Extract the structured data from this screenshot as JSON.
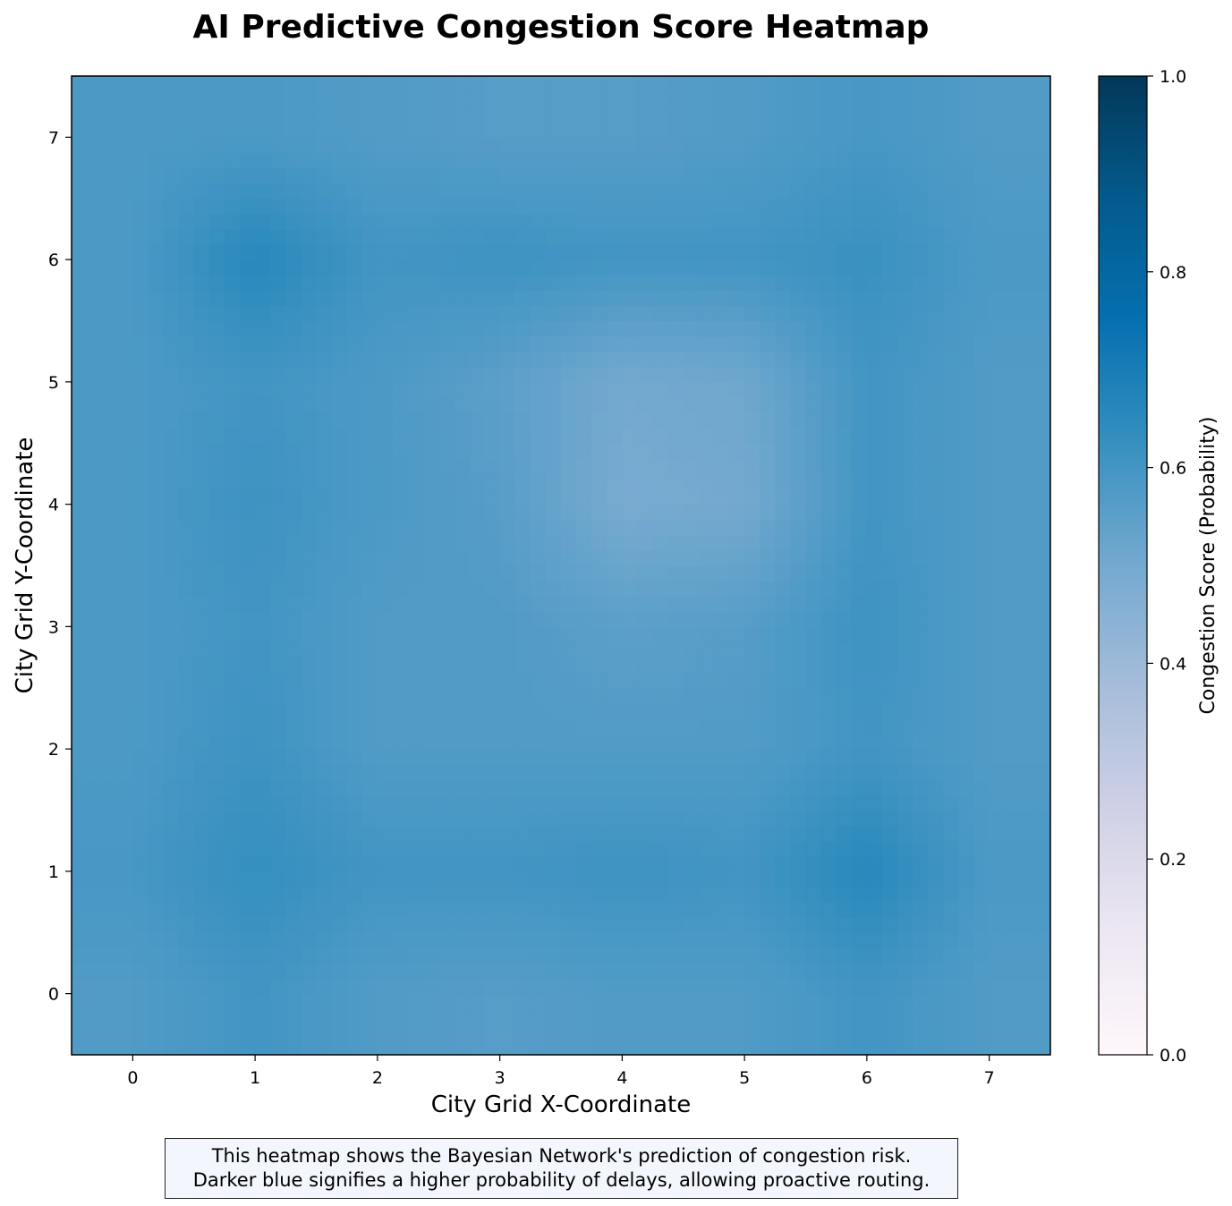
{
  "chart_data": {
    "type": "heatmap",
    "title": "AI Predictive Congestion Score Heatmap",
    "xlabel": "City Grid X-Coordinate",
    "ylabel": "City Grid Y-Coordinate",
    "x": [
      0,
      1,
      2,
      3,
      4,
      5,
      6,
      7
    ],
    "y": [
      0,
      1,
      2,
      3,
      4,
      5,
      6,
      7
    ],
    "xlim": [
      -0.5,
      7.5
    ],
    "ylim": [
      -0.5,
      7.5
    ],
    "xticks": [
      "0",
      "1",
      "2",
      "3",
      "4",
      "5",
      "6",
      "7"
    ],
    "yticks": [
      "0",
      "1",
      "2",
      "3",
      "4",
      "5",
      "6",
      "7"
    ],
    "z": [
      [
        0.57,
        0.6,
        0.57,
        0.56,
        0.57,
        0.57,
        0.6,
        0.57
      ],
      [
        0.59,
        0.63,
        0.6,
        0.6,
        0.61,
        0.6,
        0.66,
        0.58
      ],
      [
        0.58,
        0.61,
        0.57,
        0.57,
        0.57,
        0.57,
        0.6,
        0.57
      ],
      [
        0.58,
        0.6,
        0.57,
        0.57,
        0.55,
        0.56,
        0.61,
        0.57
      ],
      [
        0.58,
        0.61,
        0.58,
        0.56,
        0.49,
        0.5,
        0.6,
        0.57
      ],
      [
        0.58,
        0.6,
        0.58,
        0.55,
        0.5,
        0.51,
        0.6,
        0.57
      ],
      [
        0.58,
        0.66,
        0.6,
        0.61,
        0.6,
        0.6,
        0.62,
        0.58
      ],
      [
        0.58,
        0.58,
        0.57,
        0.56,
        0.56,
        0.57,
        0.59,
        0.57
      ]
    ],
    "interpolation": "smooth",
    "colormap": "PuBu",
    "colorbar": {
      "label": "Congestion Score (Probability)",
      "range": [
        0.0,
        1.0
      ],
      "ticks": [
        "0.0",
        "0.2",
        "0.4",
        "0.6",
        "0.8",
        "1.0"
      ],
      "stops": [
        "#fff7fb",
        "#ece7f2",
        "#d0d1e6",
        "#a6bddb",
        "#74a9cf",
        "#3690c0",
        "#0570b0",
        "#045a8d",
        "#023858"
      ]
    }
  },
  "caption": {
    "line1": "This heatmap shows the Bayesian Network's prediction of congestion risk.",
    "line2": "Darker blue signifies a higher probability of delays, allowing proactive routing."
  }
}
